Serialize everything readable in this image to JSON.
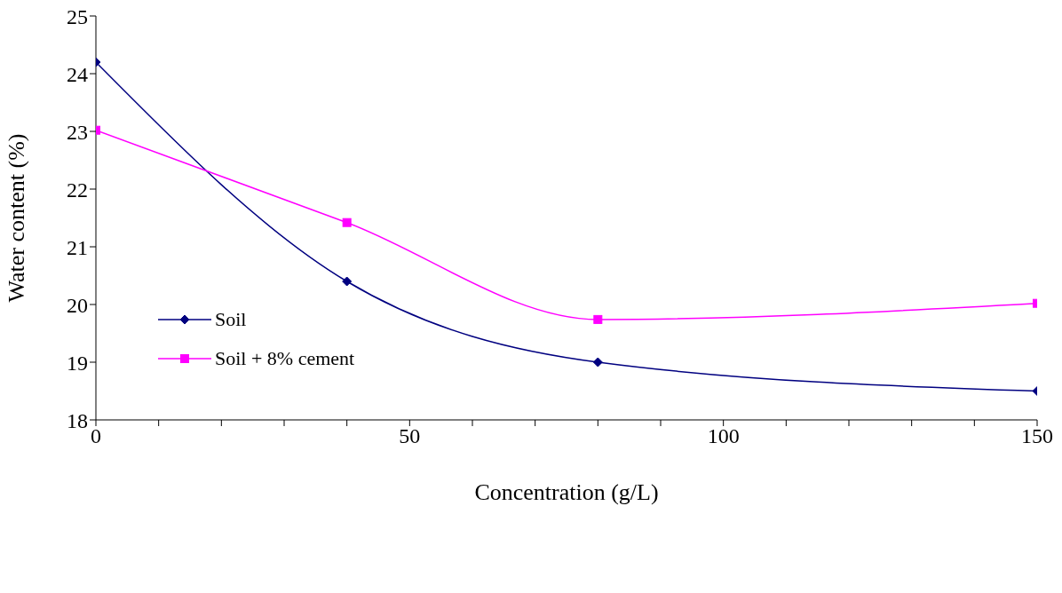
{
  "chart_data": {
    "type": "line",
    "xlabel": "Concentration (g/L)",
    "ylabel": "Water content (%)",
    "x": [
      0,
      40,
      80,
      150
    ],
    "series": [
      {
        "name": "Soil",
        "color": "#000080",
        "values": [
          24.2,
          20.4,
          19.0,
          18.5
        ],
        "marker": "diamond"
      },
      {
        "name": "Soil + 8% cement",
        "color": "#ff00ff",
        "values": [
          23.02,
          21.42,
          19.74,
          20.02
        ],
        "marker": "square"
      }
    ],
    "xlim": [
      0,
      150
    ],
    "xticks": [
      0,
      {
        "value": 10,
        "label": null
      },
      {
        "value": 20,
        "label": null
      },
      {
        "value": 30,
        "label": null
      },
      {
        "value": 40,
        "label": null
      },
      50,
      {
        "value": 60,
        "label": null
      },
      {
        "value": 70,
        "label": null
      },
      {
        "value": 80,
        "label": null
      },
      {
        "value": 90,
        "label": null
      },
      100,
      {
        "value": 110,
        "label": null
      },
      {
        "value": 120,
        "label": null
      },
      {
        "value": 130,
        "label": null
      },
      {
        "value": 140,
        "label": null
      },
      150
    ],
    "ylim": [
      18,
      25
    ],
    "yticks": [
      18,
      19,
      20,
      21,
      22,
      23,
      24,
      25
    ],
    "grid": false,
    "legend": "bottom left",
    "line_style": "solid"
  }
}
